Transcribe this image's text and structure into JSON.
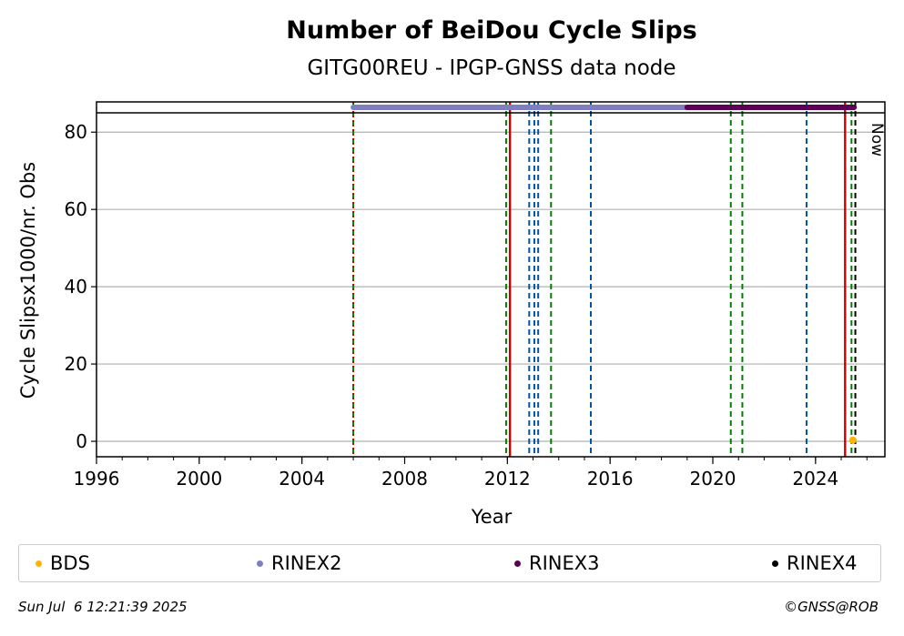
{
  "chart_data": {
    "type": "scatter",
    "title": "Number of BeiDou Cycle Slips",
    "subtitle": "GITG00REU - IPGP-GNSS data node",
    "xlabel": "Year",
    "ylabel": "Cycle Slipsx1000/nr. Obs",
    "xlim": [
      1996,
      2026.7
    ],
    "ylim": [
      -4,
      85
    ],
    "x_ticks": [
      "1996",
      "2000",
      "2004",
      "2008",
      "2012",
      "2016",
      "2020",
      "2024"
    ],
    "y_ticks": [
      "0",
      "20",
      "40",
      "60",
      "80"
    ],
    "grid": "y",
    "series": [
      {
        "name": "BDS",
        "color": "#ffb400",
        "points": [
          [
            2025.45,
            0.3
          ]
        ]
      }
    ],
    "availability_bars": [
      {
        "name": "RINEX2",
        "color": "#7f7fbf",
        "start": 2006.0,
        "end": 2019.0
      },
      {
        "name": "RINEX3",
        "color": "#5c0055",
        "start": 2019.0,
        "end": 2025.5
      }
    ],
    "event_lines": [
      {
        "x": 2006.0,
        "color": "#008000",
        "style": "dashed"
      },
      {
        "x": 2006.0,
        "color": "#cc0000",
        "style": "dotted"
      },
      {
        "x": 2011.95,
        "color": "#008000",
        "style": "dashed"
      },
      {
        "x": 2012.1,
        "color": "#cc0000",
        "style": "solid"
      },
      {
        "x": 2012.85,
        "color": "#0055aa",
        "style": "dashed"
      },
      {
        "x": 2013.05,
        "color": "#0055aa",
        "style": "dashed"
      },
      {
        "x": 2013.2,
        "color": "#0055aa",
        "style": "dashed"
      },
      {
        "x": 2013.7,
        "color": "#008000",
        "style": "dashed"
      },
      {
        "x": 2015.25,
        "color": "#0055aa",
        "style": "dashed"
      },
      {
        "x": 2020.7,
        "color": "#008000",
        "style": "dashed"
      },
      {
        "x": 2021.15,
        "color": "#008000",
        "style": "dashed"
      },
      {
        "x": 2023.65,
        "color": "#0055aa",
        "style": "dashed"
      },
      {
        "x": 2025.15,
        "color": "#cc0000",
        "style": "solid"
      },
      {
        "x": 2025.4,
        "color": "#008000",
        "style": "dashed"
      },
      {
        "x": 2025.55,
        "color": "#000000",
        "style": "dashed"
      }
    ],
    "now_label": "Now",
    "legend": [
      {
        "name": "BDS",
        "color": "#ffb400"
      },
      {
        "name": "RINEX2",
        "color": "#7f7fbf"
      },
      {
        "name": "RINEX3",
        "color": "#5c0055"
      },
      {
        "name": "RINEX4",
        "color": "#000000"
      }
    ],
    "legend_placement": "bottom"
  },
  "footer": {
    "timestamp": "Sun Jul  6 12:21:39 2025",
    "credit": "©GNSS@ROB"
  }
}
